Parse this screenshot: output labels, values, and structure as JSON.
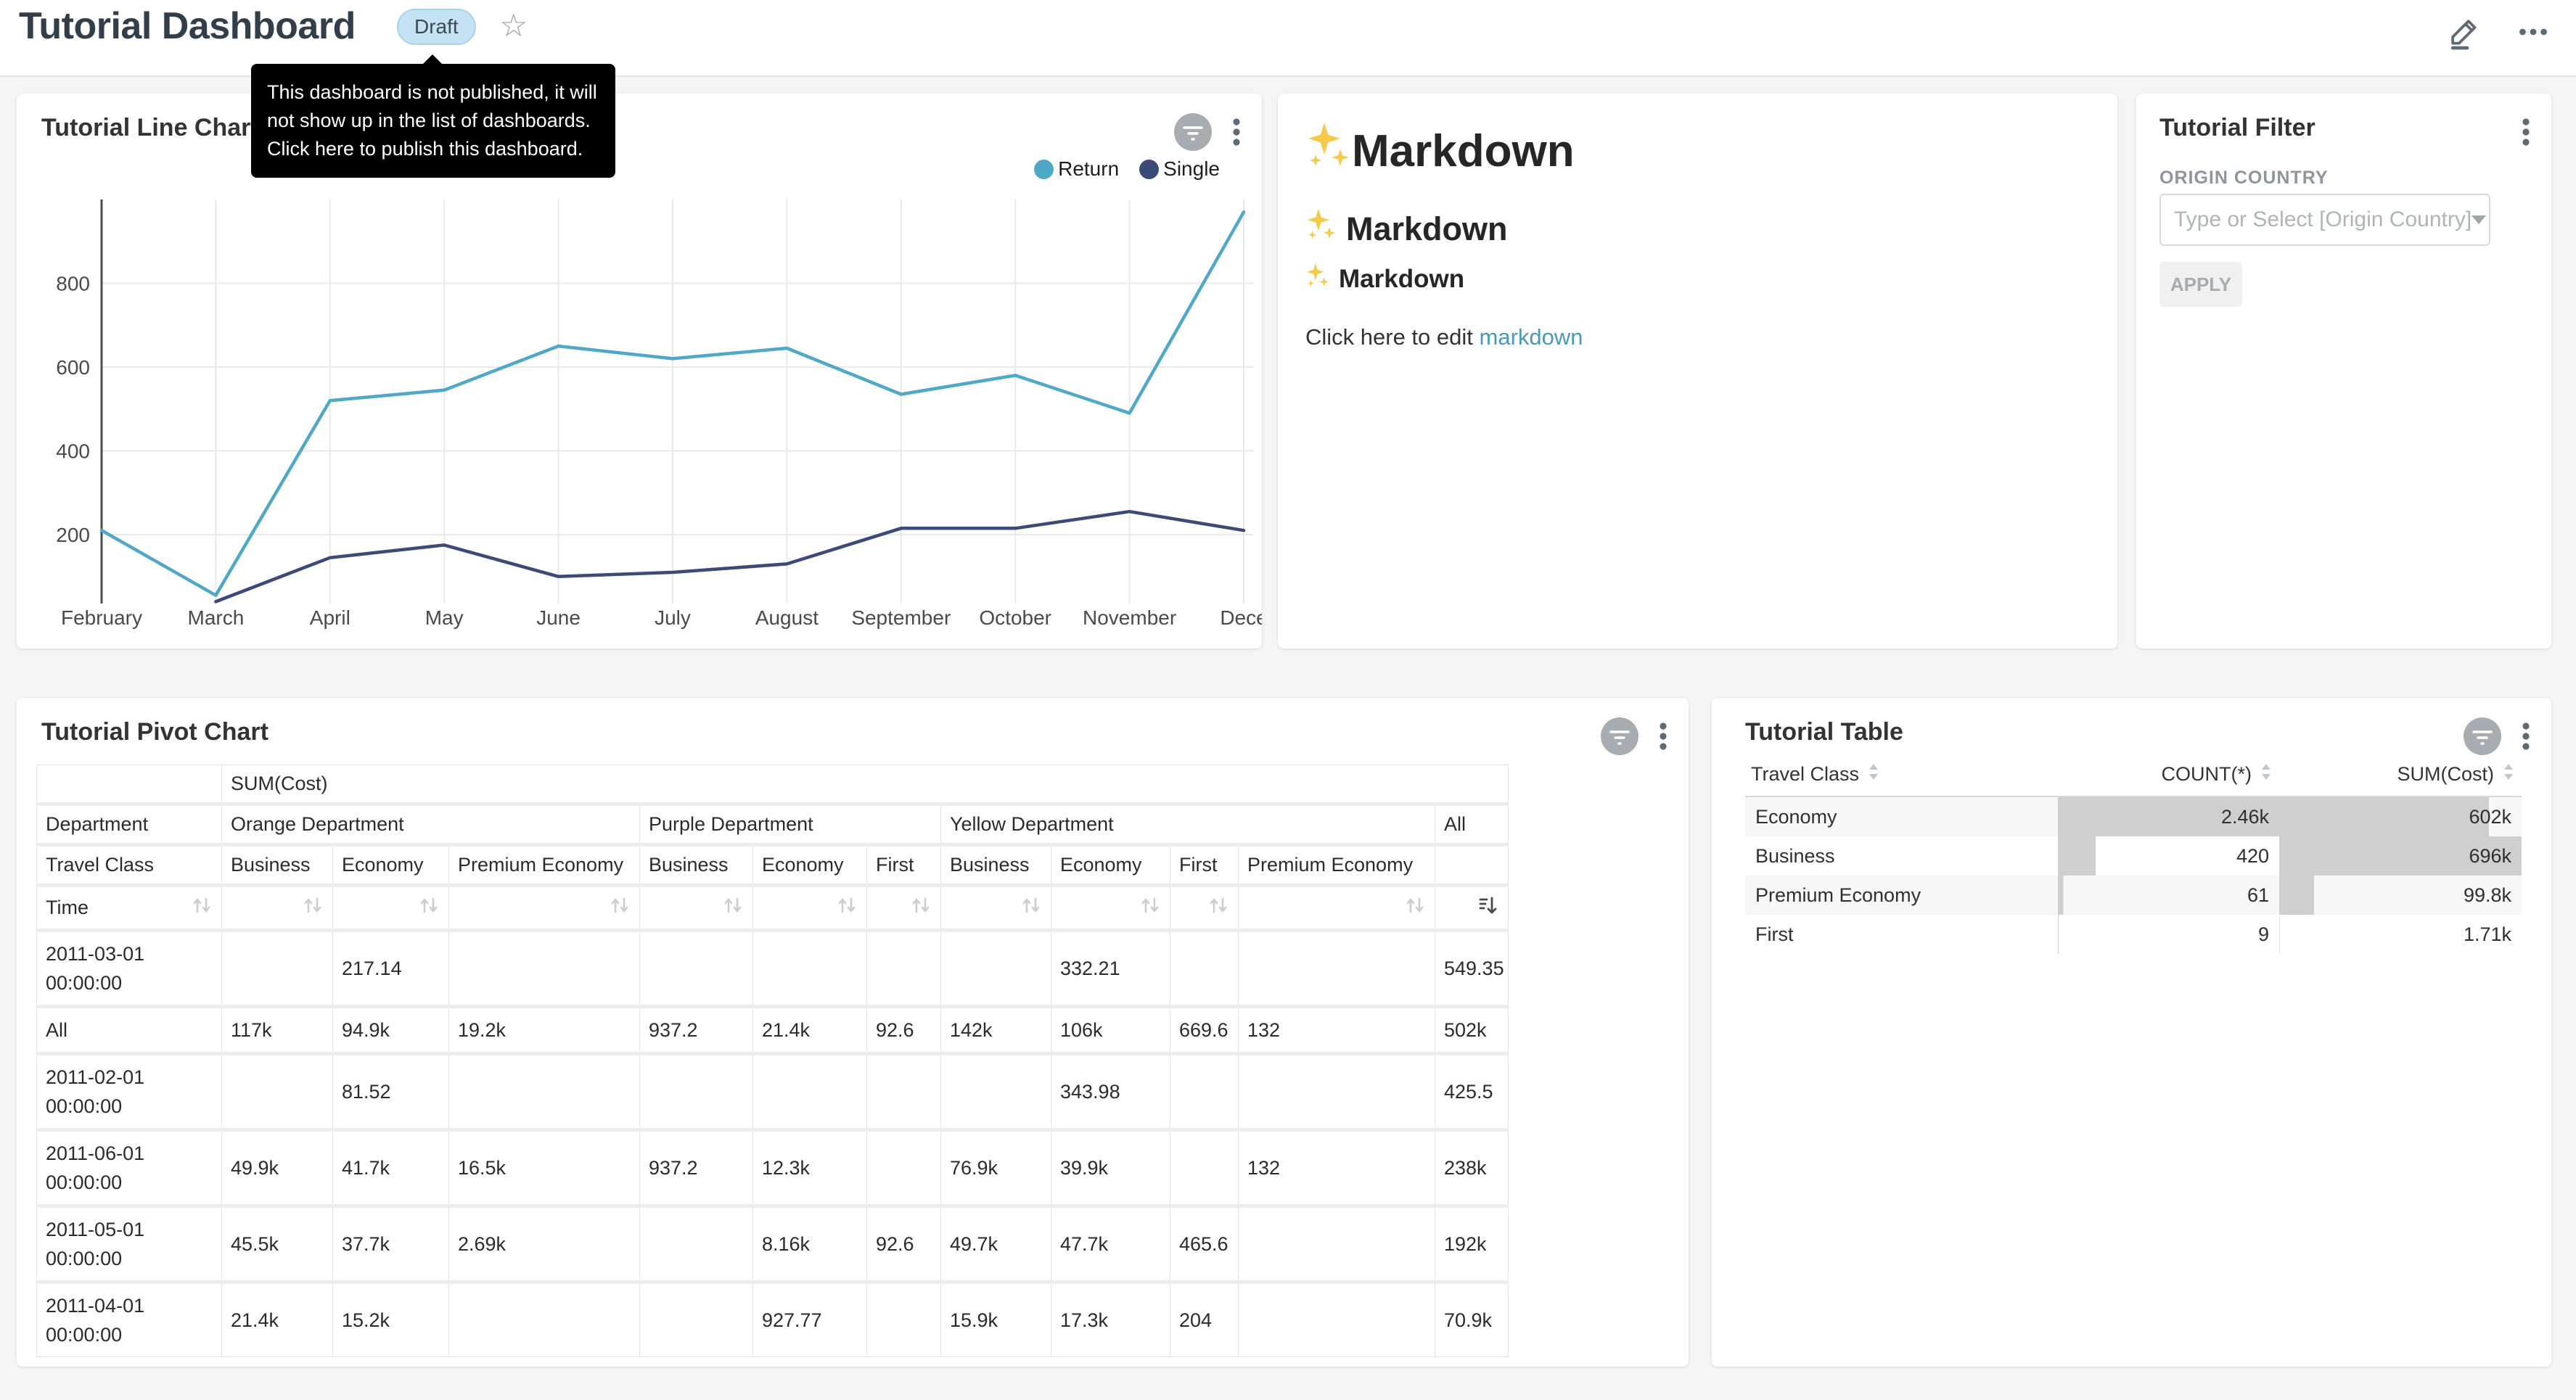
{
  "header": {
    "title": "Tutorial Dashboard",
    "badge": "Draft",
    "tooltip_lines": [
      "This dashboard is not published, it will",
      "not show up in the list of dashboards.",
      "Click here to publish this dashboard."
    ]
  },
  "colors": {
    "return_series": "#4FA8C7",
    "single_series": "#3B4A77",
    "badge_bg": "#C3E2F3",
    "link": "#4A98BA",
    "bar_fill": "#CFCFCF"
  },
  "line_chart": {
    "title": "Tutorial Line Chart",
    "legend": [
      {
        "label": "Return",
        "color": "#4FA8C7"
      },
      {
        "label": "Single",
        "color": "#3B4A77"
      }
    ]
  },
  "chart_data": {
    "type": "line",
    "title": "Tutorial Line Chart",
    "x": [
      "February",
      "March",
      "April",
      "May",
      "June",
      "July",
      "August",
      "September",
      "October",
      "November",
      "Dece"
    ],
    "series": [
      {
        "name": "Return",
        "color": "#4FA8C7",
        "values": [
          210,
          55,
          520,
          545,
          650,
          620,
          645,
          535,
          580,
          490,
          970
        ]
      },
      {
        "name": "Single",
        "color": "#3B4A77",
        "values": [
          null,
          40,
          145,
          175,
          100,
          110,
          130,
          215,
          215,
          255,
          210
        ]
      }
    ],
    "y_ticks": [
      200,
      400,
      600,
      800
    ],
    "grid": true,
    "legend_position": "top-right"
  },
  "markdown": {
    "icon": "sparkles",
    "h1": "Markdown",
    "h2": "Markdown",
    "h3": "Markdown",
    "paragraph": "Click here to edit ",
    "link": "markdown"
  },
  "filter": {
    "title": "Tutorial Filter",
    "label": "ORIGIN COUNTRY",
    "placeholder": "Type or Select [Origin Country]",
    "apply": "APPLY"
  },
  "pivot": {
    "title": "Tutorial Pivot Chart",
    "metric_header": "SUM(Cost)",
    "row1_label": "Department",
    "row2_label": "Travel Class",
    "row3_label": "Time",
    "groups": [
      {
        "name": "Orange Department",
        "classes": [
          "Business",
          "Economy",
          "Premium Economy"
        ]
      },
      {
        "name": "Purple Department",
        "classes": [
          "Business",
          "Economy",
          "First"
        ]
      },
      {
        "name": "Yellow Department",
        "classes": [
          "Business",
          "Economy",
          "First",
          "Premium Economy"
        ]
      },
      {
        "name": "All",
        "classes": [
          ""
        ]
      }
    ],
    "rows": [
      {
        "label": "2011-03-01 00:00:00",
        "values": [
          "",
          "217.14",
          "",
          "",
          "",
          "",
          "",
          "332.21",
          "",
          "",
          "549.35"
        ]
      },
      {
        "label": "All",
        "values": [
          "117k",
          "94.9k",
          "19.2k",
          "937.2",
          "21.4k",
          "92.6",
          "142k",
          "106k",
          "669.6",
          "132",
          "502k"
        ]
      },
      {
        "label": "2011-02-01 00:00:00",
        "values": [
          "",
          "81.52",
          "",
          "",
          "",
          "",
          "",
          "343.98",
          "",
          "",
          "425.5"
        ]
      },
      {
        "label": "2011-06-01 00:00:00",
        "values": [
          "49.9k",
          "41.7k",
          "16.5k",
          "937.2",
          "12.3k",
          "",
          "76.9k",
          "39.9k",
          "",
          "132",
          "238k"
        ]
      },
      {
        "label": "2011-05-01 00:00:00",
        "values": [
          "45.5k",
          "37.7k",
          "2.69k",
          "",
          "8.16k",
          "92.6",
          "49.7k",
          "47.7k",
          "465.6",
          "",
          "192k"
        ]
      },
      {
        "label": "2011-04-01 00:00:00",
        "values": [
          "21.4k",
          "15.2k",
          "",
          "",
          "927.77",
          "",
          "15.9k",
          "17.3k",
          "204",
          "",
          "70.9k"
        ]
      }
    ]
  },
  "table": {
    "title": "Tutorial Table",
    "columns": [
      "Travel Class",
      "COUNT(*)",
      "SUM(Cost)"
    ],
    "rows": [
      {
        "travel_class": "Economy",
        "count": "2.46k",
        "sum": "602k"
      },
      {
        "travel_class": "Business",
        "count": "420",
        "sum": "696k"
      },
      {
        "travel_class": "Premium Economy",
        "count": "61",
        "sum": "99.8k"
      },
      {
        "travel_class": "First",
        "count": "9",
        "sum": "1.71k"
      }
    ]
  }
}
